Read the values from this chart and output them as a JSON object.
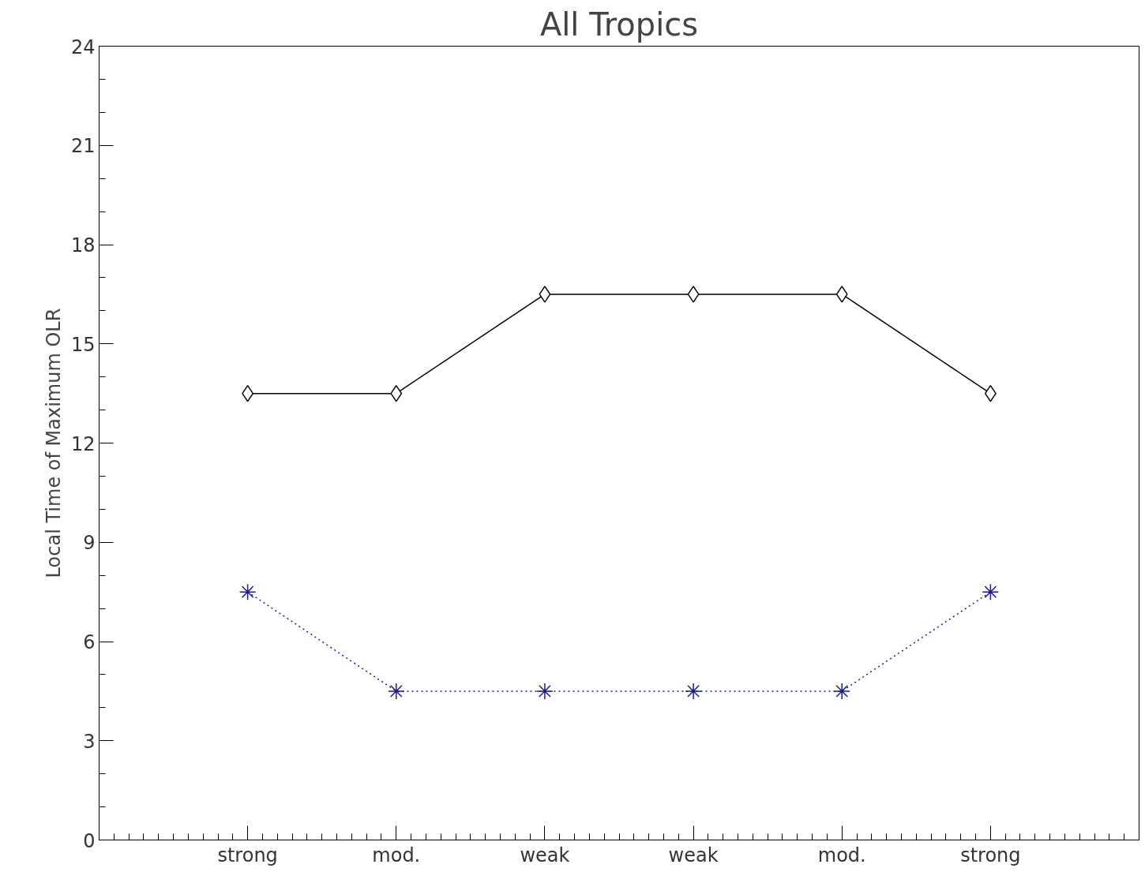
{
  "chart_data": {
    "type": "line",
    "title": "All Tropics",
    "ylabel": "Local Time of Maximum OLR",
    "categories": [
      "strong",
      "mod.",
      "weak",
      "weak",
      "mod.",
      "strong"
    ],
    "series": [
      {
        "color": "#000000",
        "marker": "diamond",
        "line_style": "solid",
        "values": [
          13.5,
          13.5,
          16.5,
          16.5,
          16.5,
          13.5
        ]
      },
      {
        "color": "#1a1a99",
        "marker": "cross",
        "line_style": "dotted",
        "values": [
          7.5,
          4.5,
          4.5,
          4.5,
          4.5,
          7.5
        ]
      }
    ],
    "ylim": [
      0,
      24
    ],
    "yticks": [
      0,
      3,
      6,
      9,
      12,
      15,
      18,
      21,
      24
    ],
    "grid": false
  }
}
